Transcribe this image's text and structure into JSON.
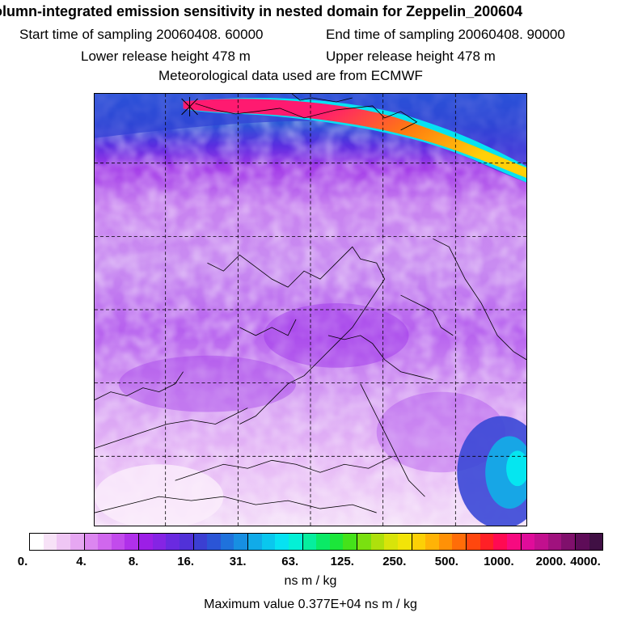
{
  "header": {
    "title": "olumn-integrated emission sensitivity in nested domain for Zeppelin_200604",
    "start_time": "Start time of sampling 20060408. 60000",
    "end_time": "End time of sampling 20060408. 90000",
    "lower_height": "Lower release height  478 m",
    "upper_height": "Upper release height  478 m",
    "met_data": "Meteorological data used are from ECMWF"
  },
  "colorbar": {
    "labels": [
      "0.",
      "4.",
      "8.",
      "16.",
      "31.",
      "63.",
      "125.",
      "250.",
      "500.",
      "1000.",
      "2000.",
      "4000."
    ],
    "colors": [
      "#ffffff",
      "#f7e2f7",
      "#efc6f4",
      "#e6a7f2",
      "#dc86f0",
      "#d067ee",
      "#c24bec",
      "#b030ea",
      "#9c1fe6",
      "#8524e4",
      "#6a2ae0",
      "#5131d8",
      "#3b3fd2",
      "#2b55d6",
      "#1f72dc",
      "#178fe2",
      "#11abe8",
      "#0ac7ee",
      "#06e2f2",
      "#04f0d6",
      "#06ee9e",
      "#0aea66",
      "#1ce63a",
      "#45e21a",
      "#7ae010",
      "#aee00c",
      "#d8e40a",
      "#f2e408",
      "#fcd006",
      "#ffb306",
      "#ff9106",
      "#ff6d08",
      "#ff470e",
      "#ff2026",
      "#ff0a52",
      "#f70a80",
      "#e00c9a",
      "#c2108e",
      "#a0127e",
      "#80106c",
      "#5e0c58",
      "#401044"
    ],
    "unit": "ns m / kg"
  },
  "footer": {
    "max_value": "Maximum value  0.377E+04 ns m / kg"
  }
}
